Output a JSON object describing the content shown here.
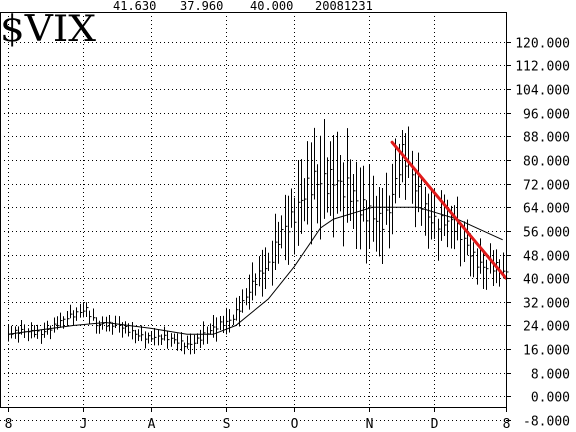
{
  "header": {
    "symbol": "$VIX",
    "values": [
      "41.630",
      "37.960",
      "40.000",
      "20081231"
    ]
  },
  "chart_data": {
    "type": "line",
    "title": "$VIX",
    "ylim": [
      -8,
      124
    ],
    "y_ticks": [
      -8,
      0,
      8,
      16,
      24,
      32,
      40,
      48,
      56,
      64,
      72,
      80,
      88,
      96,
      104,
      112,
      120
    ],
    "y_tick_labels": [
      "-8.000",
      "0.000",
      "8.000",
      "16.000",
      "24.000",
      "32.000",
      "40.000",
      "48.000",
      "56.000",
      "64.000",
      "72.000",
      "80.000",
      "88.000",
      "96.000",
      "104.000",
      "112.000",
      "120.000"
    ],
    "x_ticks": [
      {
        "label": "8",
        "day": 0
      },
      {
        "label": "J",
        "day": 23
      },
      {
        "label": "A",
        "day": 44
      },
      {
        "label": "S",
        "day": 67
      },
      {
        "label": "O",
        "day": 88
      },
      {
        "label": "N",
        "day": 111
      },
      {
        "label": "D",
        "day": 131
      },
      {
        "label": "8",
        "day": 153
      }
    ],
    "grid": true,
    "series": [
      {
        "style": "high-low bars",
        "color": "#000000",
        "anchors": [
          [
            0,
            21
          ],
          [
            10,
            22
          ],
          [
            20,
            27
          ],
          [
            24,
            30
          ],
          [
            27,
            25
          ],
          [
            35,
            23
          ],
          [
            44,
            20
          ],
          [
            55,
            18
          ],
          [
            63,
            22
          ],
          [
            68,
            26
          ],
          [
            74,
            36
          ],
          [
            80,
            43
          ],
          [
            84,
            58
          ],
          [
            88,
            63
          ],
          [
            92,
            67
          ],
          [
            96,
            72
          ],
          [
            100,
            78
          ],
          [
            104,
            70
          ],
          [
            108,
            60
          ],
          [
            112,
            62
          ],
          [
            116,
            63
          ],
          [
            119,
            72
          ],
          [
            121,
            80
          ],
          [
            125,
            70
          ],
          [
            130,
            62
          ],
          [
            135,
            58
          ],
          [
            140,
            52
          ],
          [
            145,
            46
          ],
          [
            150,
            43
          ],
          [
            153,
            40
          ]
        ],
        "range_anchors": [
          [
            0,
            4
          ],
          [
            50,
            4
          ],
          [
            70,
            6
          ],
          [
            82,
            12
          ],
          [
            95,
            24
          ],
          [
            115,
            18
          ],
          [
            130,
            14
          ],
          [
            153,
            8
          ]
        ]
      },
      {
        "style": "moving average",
        "color": "#000000",
        "points": [
          [
            0,
            21
          ],
          [
            20,
            24
          ],
          [
            30,
            25
          ],
          [
            44,
            23
          ],
          [
            55,
            21
          ],
          [
            63,
            21
          ],
          [
            70,
            24
          ],
          [
            80,
            33
          ],
          [
            88,
            44
          ],
          [
            96,
            57
          ],
          [
            100,
            60
          ],
          [
            106,
            62
          ],
          [
            112,
            64
          ],
          [
            120,
            64
          ],
          [
            126,
            64
          ],
          [
            132,
            62
          ],
          [
            138,
            60
          ],
          [
            146,
            56
          ],
          [
            152,
            53
          ]
        ]
      },
      {
        "style": "trendline",
        "color": "#e11b1b",
        "points": [
          [
            118,
            86
          ],
          [
            153,
            40
          ]
        ]
      }
    ]
  }
}
